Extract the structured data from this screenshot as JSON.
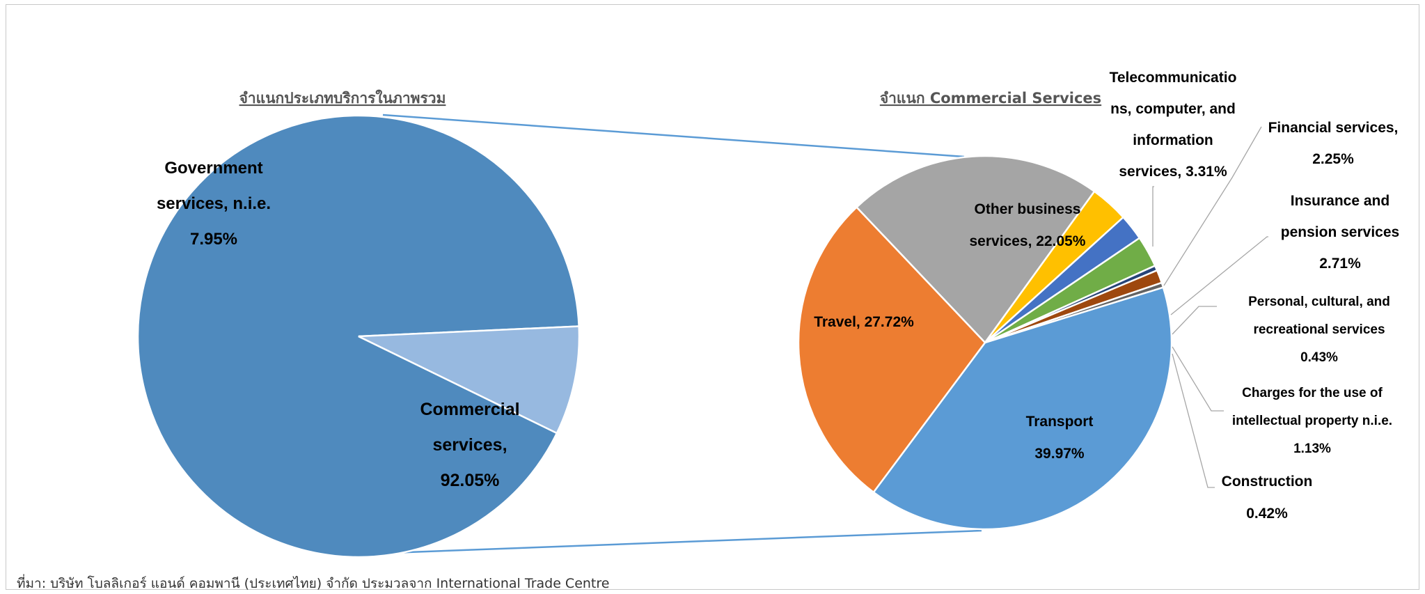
{
  "source_note": "ที่มา: บริษัท โบลลิเกอร์ แอนด์ คอมพานี (ประเทศไทย) จำกัด ประมวลจาก International Trade Centre",
  "chart_data": [
    {
      "type": "pie",
      "title": "จำแนกประเภทบริการในภาพรวม",
      "slices": [
        {
          "label_lines": [
            "Commercial",
            "services,",
            "92.05%"
          ],
          "value": 92.05,
          "color": "#4f8abe"
        },
        {
          "label_lines": [
            "Government",
            "services, n.i.e.",
            "7.95%"
          ],
          "value": 7.95,
          "color": "#97b9e0"
        }
      ]
    },
    {
      "type": "pie",
      "title": "จำแนก Commercial Services",
      "slices": [
        {
          "label_lines": [
            "Other business",
            "services, 22.05%"
          ],
          "value": 22.05,
          "color": "#a5a5a5"
        },
        {
          "label_lines": [
            "Telecommunicatio",
            "ns, computer, and",
            "information",
            "services, 3.31%"
          ],
          "value": 3.31,
          "color": "#ffc000"
        },
        {
          "label_lines": [
            "Financial services,",
            "2.25%"
          ],
          "value": 2.25,
          "color": "#4472c4"
        },
        {
          "label_lines": [
            "Insurance and",
            "pension services",
            "2.71%"
          ],
          "value": 2.71,
          "color": "#70ad47"
        },
        {
          "label_lines": [
            "Personal, cultural, and",
            "recreational services",
            "0.43%"
          ],
          "value": 0.43,
          "color": "#264478"
        },
        {
          "label_lines": [
            "Charges for the use of",
            "intellectual property n.i.e.",
            "1.13%"
          ],
          "value": 1.13,
          "color": "#9e480e"
        },
        {
          "label_lines": [
            "Construction",
            "0.42%"
          ],
          "value": 0.42,
          "color": "#636363"
        },
        {
          "label_lines": [
            "Transport",
            "39.97%"
          ],
          "value": 39.97,
          "color": "#5b9bd5"
        },
        {
          "label_lines": [
            "Travel, 27.72%"
          ],
          "value": 27.72,
          "color": "#ed7d31"
        }
      ]
    }
  ]
}
